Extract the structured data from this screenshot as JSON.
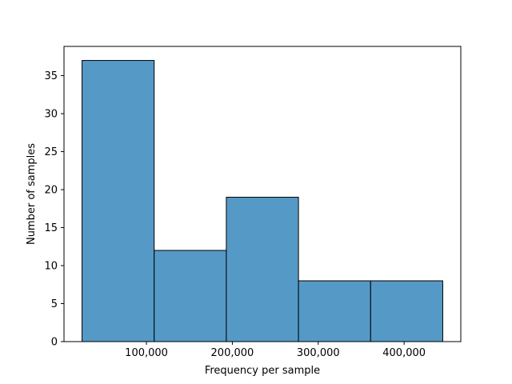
{
  "chart_data": {
    "type": "bar",
    "subtype": "histogram",
    "title": "",
    "xlabel": "Frequency per sample",
    "ylabel": "Number of samples",
    "bins": [
      {
        "x0": 25000,
        "x1": 109000,
        "value": 37
      },
      {
        "x0": 109000,
        "x1": 193000,
        "value": 12
      },
      {
        "x0": 193000,
        "x1": 277000,
        "value": 19
      },
      {
        "x0": 277000,
        "x1": 361000,
        "value": 8
      },
      {
        "x0": 361000,
        "x1": 445000,
        "value": 8
      }
    ],
    "xlim": [
      4000,
      466000
    ],
    "ylim": [
      0,
      38.85
    ],
    "xticks": [
      100000,
      200000,
      300000,
      400000
    ],
    "xtick_labels": [
      "100,000",
      "200,000",
      "300,000",
      "400,000"
    ],
    "yticks": [
      0,
      5,
      10,
      15,
      20,
      25,
      30,
      35
    ],
    "ytick_labels": [
      "0",
      "5",
      "10",
      "15",
      "20",
      "25",
      "30",
      "35"
    ],
    "grid": false,
    "bar_color": "#5599c7",
    "edge_color": "#000000"
  }
}
